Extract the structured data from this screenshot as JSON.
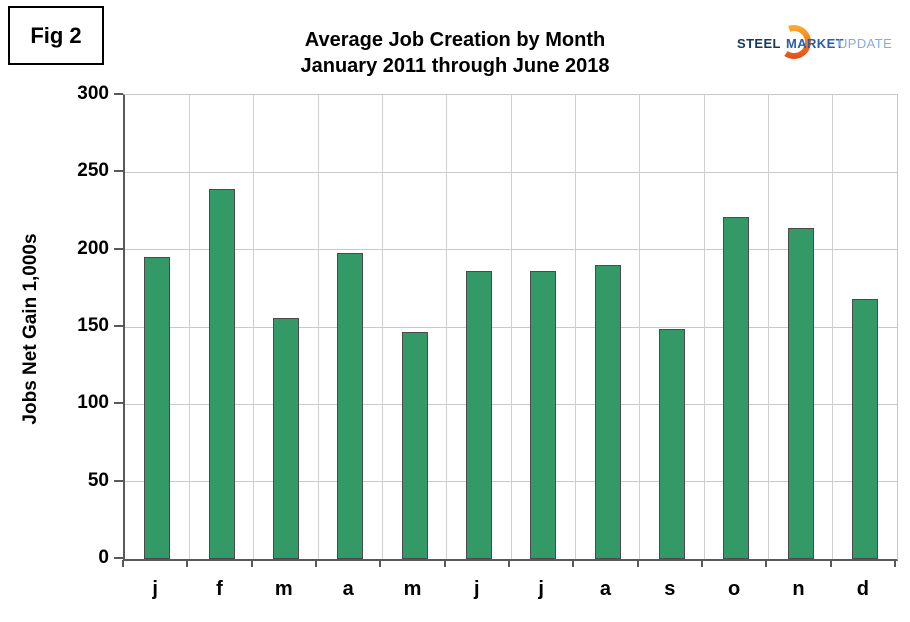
{
  "header": {
    "fig_label": "Fig 2"
  },
  "logo": {
    "word1": "STEEL",
    "word2": "MARKET",
    "word3": "UPDATE",
    "word1_color": "#16365c",
    "word2_color": "#2a5caa",
    "word3_color": "#8aa9d6",
    "crescent_top_color": "#f9b233",
    "crescent_bottom_color": "#e24e1b"
  },
  "chart_data": {
    "type": "bar",
    "title": "Average Job Creation by Month",
    "subtitle": "January 2011 through June 2018",
    "categories": [
      "j",
      "f",
      "m",
      "a",
      "m",
      "j",
      "j",
      "a",
      "s",
      "o",
      "n",
      "d"
    ],
    "values": [
      195,
      239,
      156,
      198,
      147,
      186,
      186,
      190,
      149,
      221,
      214,
      168
    ],
    "xlabel": "",
    "ylabel": "Jobs Net Gain 1,000s",
    "ylim": [
      0,
      300
    ],
    "yticks": [
      0,
      50,
      100,
      150,
      200,
      250,
      300
    ],
    "grid": true,
    "legend": "none",
    "bar_color": "#339966",
    "bar_border_color": "#4a4a4a",
    "gridline_color": "#c9c9c9",
    "axis_color": "#595959"
  }
}
